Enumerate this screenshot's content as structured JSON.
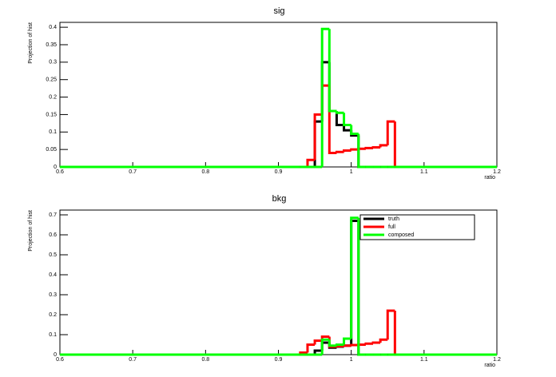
{
  "chart_data": [
    {
      "type": "histogram",
      "title": "sig",
      "x_label": "ratio",
      "y_label": "Projection of hist",
      "bins": [
        0.6,
        0.93,
        0.94,
        0.95,
        0.96,
        0.97,
        0.98,
        0.99,
        1.0,
        1.01,
        1.02,
        1.03,
        1.04,
        1.05,
        1.06,
        1.2
      ],
      "series": [
        {
          "color": "#000000",
          "values": [
            0,
            0,
            0,
            0.13,
            0.3,
            0.16,
            0.12,
            0.105,
            0.09,
            0,
            0,
            0,
            0,
            0,
            0
          ]
        },
        {
          "color": "#ff0000",
          "values": [
            0,
            0,
            0.02,
            0.15,
            0.233,
            0.04,
            0.043,
            0.047,
            0.05,
            0.052,
            0.054,
            0.056,
            0.062,
            0.13,
            0
          ]
        },
        {
          "color": "#00ff00",
          "values": [
            0,
            0,
            0,
            0,
            0.395,
            0.16,
            0.155,
            0.12,
            0.095,
            0,
            0,
            0,
            0,
            0,
            0
          ]
        }
      ],
      "xlim": [
        0.6,
        1.2
      ],
      "xticks": [
        0.6,
        0.7,
        0.8,
        0.9,
        1,
        1.1,
        1.2
      ],
      "ylim": [
        0,
        0.414
      ],
      "yticks": [
        0,
        0.05,
        0.1,
        0.15,
        0.2,
        0.25,
        0.3,
        0.35,
        0.4
      ]
    },
    {
      "type": "histogram",
      "title": "bkg",
      "x_label": "ratio",
      "y_label": "Projection of hist",
      "bins": [
        0.6,
        0.93,
        0.94,
        0.95,
        0.96,
        0.97,
        0.98,
        0.99,
        1.0,
        1.01,
        1.02,
        1.03,
        1.04,
        1.05,
        1.06,
        1.2
      ],
      "series": [
        {
          "name": "truth",
          "color": "#000000",
          "values": [
            0,
            0,
            0,
            0.02,
            0.06,
            0.035,
            0.04,
            0.045,
            0.67,
            0,
            0,
            0,
            0,
            0,
            0
          ]
        },
        {
          "name": "full",
          "color": "#ff0000",
          "values": [
            0,
            0.01,
            0.05,
            0.07,
            0.09,
            0.04,
            0.042,
            0.045,
            0.048,
            0.05,
            0.055,
            0.06,
            0.075,
            0.22,
            0
          ]
        },
        {
          "name": "composed",
          "color": "#00ff00",
          "values": [
            0,
            0,
            0,
            0,
            0.075,
            0.045,
            0.05,
            0.08,
            0.685,
            0,
            0,
            0,
            0,
            0,
            0
          ]
        }
      ],
      "xlim": [
        0.6,
        1.2
      ],
      "xticks": [
        0.6,
        0.7,
        0.8,
        0.9,
        1,
        1.1,
        1.2
      ],
      "ylim": [
        0,
        0.724
      ],
      "yticks": [
        0,
        0.1,
        0.2,
        0.3,
        0.4,
        0.5,
        0.6,
        0.7
      ],
      "legend": "top-right"
    }
  ]
}
